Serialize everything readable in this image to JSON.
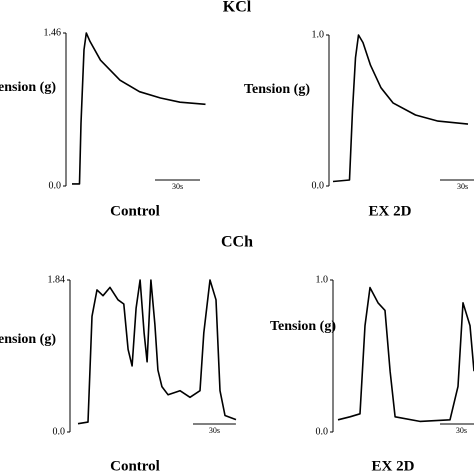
{
  "section_titles": [
    "KCl",
    "CCh"
  ],
  "chart_data": [
    {
      "type": "line",
      "xlabel": "Control",
      "ylabel": "Tension (g)",
      "ylim": [
        0,
        1.46
      ],
      "yticks": [
        {
          "value": 0,
          "label": "0.0"
        },
        1.46
      ],
      "scale_bar": {
        "length": 30,
        "label": "30s"
      },
      "series": [
        {
          "color": "#000000",
          "x": [
            0,
            5,
            6,
            8,
            9.5,
            12,
            19,
            32,
            45,
            59,
            72,
            89
          ],
          "values": [
            0.02,
            0.02,
            0.6,
            1.3,
            1.46,
            1.38,
            1.2,
            1.01,
            0.9,
            0.84,
            0.8,
            0.78
          ]
        }
      ]
    },
    {
      "type": "line",
      "xlabel": "EX 2D",
      "ylabel": "Tension (g)",
      "ylim": [
        0,
        1
      ],
      "yticks": [
        {
          "value": 0,
          "label": "0.0"
        },
        {
          "value": 1,
          "label": "1.0"
        }
      ],
      "scale_bar": {
        "length": 30,
        "label": "30s"
      },
      "series": [
        {
          "color": "#000000",
          "x": [
            0,
            11,
            13,
            15,
            17,
            20,
            25,
            32,
            40,
            55,
            70,
            90
          ],
          "values": [
            0.03,
            0.04,
            0.5,
            0.85,
            1.0,
            0.95,
            0.8,
            0.65,
            0.55,
            0.47,
            0.43,
            0.41
          ]
        }
      ]
    },
    {
      "type": "line",
      "xlabel": "Control",
      "ylabel": "Tension (g)",
      "ylim": [
        0,
        1.84
      ],
      "yticks": [
        {
          "value": 0,
          "label": "0.0"
        },
        1.84
      ],
      "scale_bar": {
        "length": 30,
        "label": "30s"
      },
      "series": [
        {
          "color": "#000000",
          "x": [
            0,
            7,
            9.8,
            13.3,
            17.5,
            22.4,
            28,
            32,
            35,
            37.8,
            40.6,
            43.4,
            46.2,
            48.3,
            51,
            53.8,
            55.9,
            58.7,
            63,
            71.3,
            78.3,
            85.3,
            88,
            92.3,
            96.5,
            99.3,
            102.8,
            110.5
          ],
          "values": [
            0.1,
            0.12,
            1.4,
            1.72,
            1.65,
            1.75,
            1.6,
            1.55,
            1.0,
            0.8,
            1.5,
            1.84,
            1.2,
            0.85,
            1.84,
            1.3,
            0.75,
            0.55,
            0.45,
            0.5,
            0.42,
            0.5,
            1.2,
            1.84,
            1.6,
            0.5,
            0.2,
            0.15
          ]
        }
      ]
    },
    {
      "type": "line",
      "xlabel": "EX 2D",
      "ylabel": "Tension (g)",
      "ylim": [
        0,
        1
      ],
      "yticks": [
        {
          "value": 0,
          "label": "0.0"
        },
        {
          "value": 1,
          "label": "1.0"
        }
      ],
      "scale_bar": {
        "length": 30,
        "label": "30s"
      },
      "series": [
        {
          "color": "#000000",
          "x": [
            0,
            8.4,
            15.4,
            18.9,
            22.4,
            28,
            32.9,
            36.4,
            39.9,
            57.3,
            78.3,
            83.9,
            87.4,
            92.3,
            95.1
          ],
          "values": [
            0.08,
            0.1,
            0.12,
            0.7,
            0.95,
            0.85,
            0.8,
            0.4,
            0.1,
            0.07,
            0.08,
            0.3,
            0.85,
            0.7,
            0.4
          ]
        }
      ]
    }
  ]
}
